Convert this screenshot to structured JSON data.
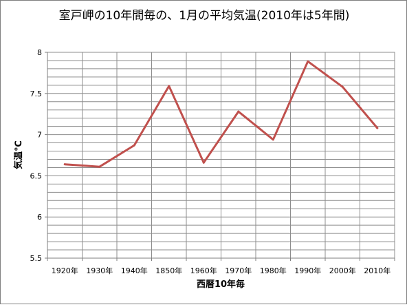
{
  "chart_data": {
    "type": "line",
    "title": "室戸岬の10年間毎の、1月の平均気温(2010年は5年間)",
    "xlabel": "西暦10年毎",
    "ylabel": "気温℃",
    "categories": [
      "1920年",
      "1930年",
      "1940年",
      "1850年",
      "1960年",
      "1970年",
      "1980年",
      "1990年",
      "2000年",
      "2010年"
    ],
    "series": [
      {
        "values": [
          6.64,
          6.61,
          6.87,
          7.59,
          6.66,
          7.28,
          6.94,
          7.89,
          7.58,
          7.08
        ]
      }
    ],
    "ylim": [
      5.5,
      8
    ],
    "yticks": [
      5.5,
      6,
      6.5,
      7,
      7.5,
      8
    ],
    "ytick_labels": [
      "5.5",
      "6",
      "6.5",
      "7",
      "7.5",
      "8"
    ],
    "grid": true,
    "line_color": "#c0504d"
  }
}
